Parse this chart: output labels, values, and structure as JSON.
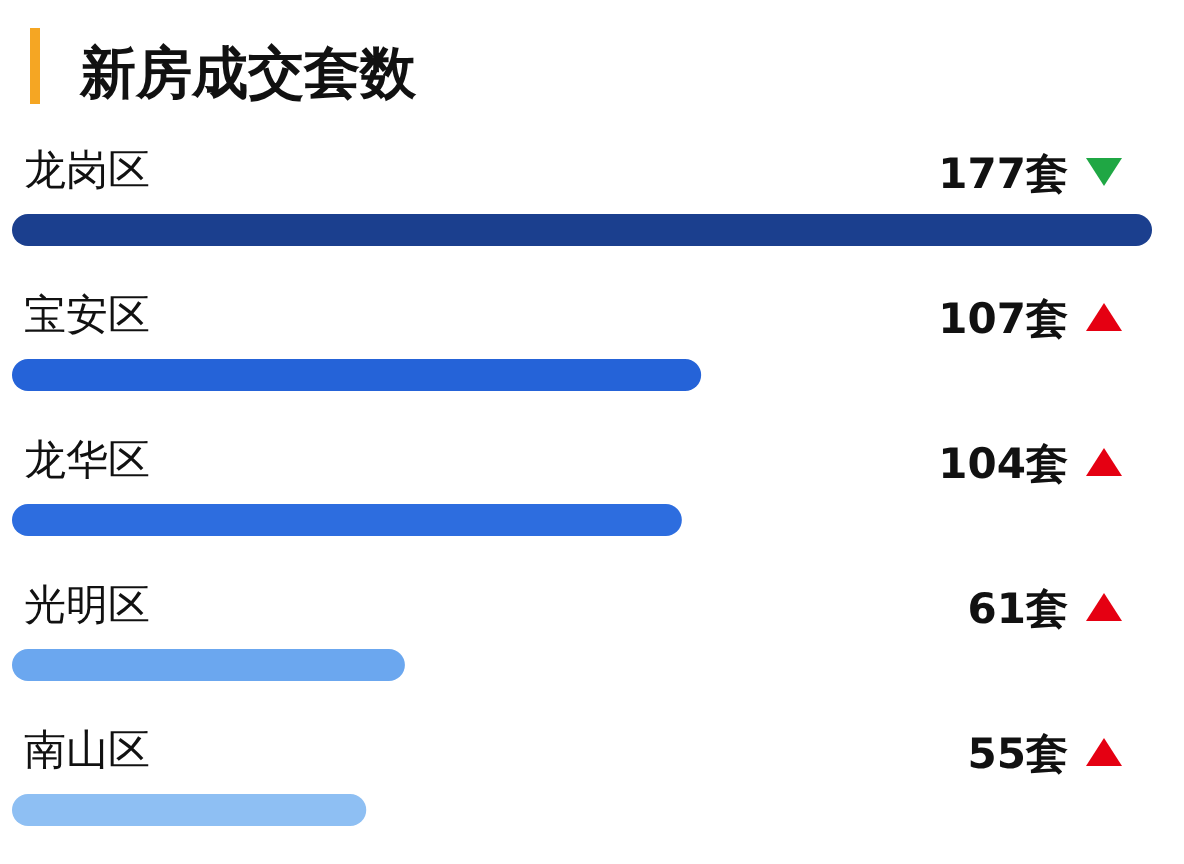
{
  "chart_data": {
    "type": "bar",
    "orientation": "horizontal",
    "title": "新房成交套数",
    "categories": [
      "龙岗区",
      "宝安区",
      "龙华区",
      "光明区",
      "南山区"
    ],
    "values": [
      177,
      107,
      104,
      61,
      55
    ],
    "colors": [
      "#1b3f8e",
      "#2563d8",
      "#2d6ddf",
      "#6ba7ef",
      "#8ebff3"
    ],
    "value_labels": [
      "177套",
      "107套",
      "104套",
      "61套",
      "55套"
    ]
  }
}
